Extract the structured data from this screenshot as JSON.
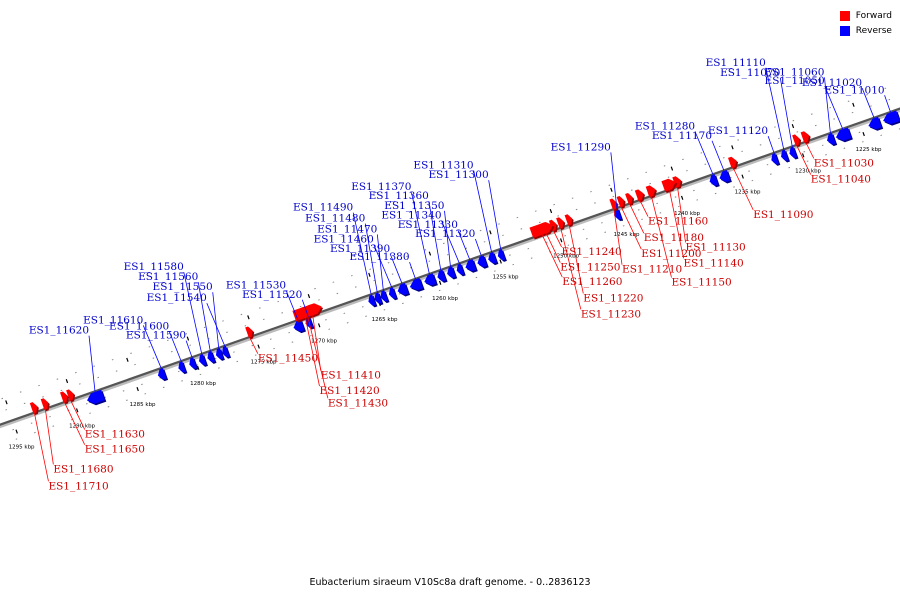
{
  "legend": {
    "forward_label": "Forward",
    "reverse_label": "Reverse",
    "forward_color": "#ff0000",
    "reverse_color": "#0000ff"
  },
  "caption": "Eubacterium siraeum V10Sc8a draft genome. - 0..2836123",
  "ticks": [
    {
      "label": "1225 kbp",
      "kbp": 1225
    },
    {
      "label": "1230 kbp",
      "kbp": 1230
    },
    {
      "label": "1235 kbp",
      "kbp": 1235
    },
    {
      "label": "1240 kbp",
      "kbp": 1240
    },
    {
      "label": "1245 kbp",
      "kbp": 1245
    },
    {
      "label": "1250 kbp",
      "kbp": 1250
    },
    {
      "label": "1255 kbp",
      "kbp": 1255
    },
    {
      "label": "1260 kbp",
      "kbp": 1260
    },
    {
      "label": "1265 kbp",
      "kbp": 1265
    },
    {
      "label": "1270 kbp",
      "kbp": 1270
    },
    {
      "label": "1275 kbp",
      "kbp": 1275
    },
    {
      "label": "1280 kbp",
      "kbp": 1280
    },
    {
      "label": "1285 kbp",
      "kbp": 1285
    },
    {
      "label": "1290 kbp",
      "kbp": 1290
    },
    {
      "label": "1295 kbp",
      "kbp": 1295
    }
  ],
  "reverse_genes": [
    {
      "name": "ES1_11010",
      "kbp": 1222.0,
      "len": 1.3
    },
    {
      "name": "ES1_11020",
      "kbp": 1223.5,
      "len": 1.0
    },
    {
      "name": "ES1_11050",
      "kbp": 1226.0,
      "len": 1.2
    },
    {
      "name": "ES1_11060",
      "kbp": 1227.3,
      "len": 0.6
    },
    {
      "name": "ES1_11070",
      "kbp": 1230.5,
      "len": 0.5
    },
    {
      "name": "ES1_11110",
      "kbp": 1231.2,
      "len": 0.5
    },
    {
      "name": "ES1_11120",
      "kbp": 1232.0,
      "len": 0.5
    },
    {
      "name": "ES1_11170",
      "kbp": 1236.0,
      "len": 0.8
    },
    {
      "name": "ES1_11280",
      "kbp": 1237.0,
      "len": 0.6
    },
    {
      "name": "ES1_11290",
      "kbp": 1245.0,
      "len": 0.2
    },
    {
      "name": "ES1_11300",
      "kbp": 1254.6,
      "len": 0.5
    },
    {
      "name": "ES1_11310",
      "kbp": 1255.3,
      "len": 0.6
    },
    {
      "name": "ES1_11320",
      "kbp": 1256.1,
      "len": 0.7
    },
    {
      "name": "ES1_11330",
      "kbp": 1257.0,
      "len": 0.8
    },
    {
      "name": "ES1_11340",
      "kbp": 1258.0,
      "len": 0.5
    },
    {
      "name": "ES1_11350",
      "kbp": 1258.7,
      "len": 0.6
    },
    {
      "name": "ES1_11360",
      "kbp": 1259.5,
      "len": 0.6
    },
    {
      "name": "ES1_11370",
      "kbp": 1260.3,
      "len": 0.9
    },
    {
      "name": "ES1_11380",
      "kbp": 1261.4,
      "len": 1.0
    },
    {
      "name": "ES1_11390",
      "kbp": 1262.6,
      "len": 0.8
    },
    {
      "name": "ES1_11460",
      "kbp": 1263.6,
      "len": 0.5
    },
    {
      "name": "ES1_11470",
      "kbp": 1264.3,
      "len": 0.3
    },
    {
      "name": "ES1_11480",
      "kbp": 1264.8,
      "len": 0.3
    },
    {
      "name": "ES1_11490",
      "kbp": 1265.3,
      "len": 0.3
    },
    {
      "name": "ES1_11520",
      "kbp": 1270.5,
      "len": 0.2
    },
    {
      "name": "ES1_11530",
      "kbp": 1271.2,
      "len": 0.8
    },
    {
      "name": "ES1_11540",
      "kbp": 1277.4,
      "len": 0.3
    },
    {
      "name": "ES1_11550",
      "kbp": 1277.9,
      "len": 0.5
    },
    {
      "name": "ES1_11560",
      "kbp": 1278.6,
      "len": 0.5
    },
    {
      "name": "ES1_11580",
      "kbp": 1279.3,
      "len": 0.5
    },
    {
      "name": "ES1_11590",
      "kbp": 1280.1,
      "len": 0.5
    },
    {
      "name": "ES1_11600",
      "kbp": 1281.0,
      "len": 0.4
    },
    {
      "name": "ES1_11610",
      "kbp": 1282.6,
      "len": 0.6
    },
    {
      "name": "ES1_11620",
      "kbp": 1287.7,
      "len": 1.4
    }
  ],
  "forward_genes": [
    {
      "name": "ES1_11030",
      "kbp": 1229.6,
      "len": 0.6
    },
    {
      "name": "ES1_11040",
      "kbp": 1230.3,
      "len": 0.3
    },
    {
      "name": "ES1_11090",
      "kbp": 1235.6,
      "len": 0.6
    },
    {
      "name": "ES1_11130",
      "kbp": 1240.2,
      "len": 0.6
    },
    {
      "name": "ES1_11140",
      "kbp": 1241.1,
      "len": 1.1
    },
    {
      "name": "ES1_11150",
      "kbp": 1242.4,
      "len": 0.7
    },
    {
      "name": "ES1_11160",
      "kbp": 1243.3,
      "len": 0.6
    },
    {
      "name": "ES1_11180",
      "kbp": 1244.1,
      "len": 0.5
    },
    {
      "name": "ES1_11200",
      "kbp": 1244.8,
      "len": 0.4
    },
    {
      "name": "ES1_11210",
      "kbp": 1245.4,
      "len": 0.4
    },
    {
      "name": "ES1_11220",
      "kbp": 1249.1,
      "len": 0.5
    },
    {
      "name": "ES1_11230",
      "kbp": 1249.8,
      "len": 0.5
    },
    {
      "name": "ES1_11240",
      "kbp": 1250.4,
      "len": 0.3
    },
    {
      "name": "ES1_11250",
      "kbp": 1251.0,
      "len": 0.4
    },
    {
      "name": "ES1_11260",
      "kbp": 1252.0,
      "len": 1.9
    },
    {
      "name": "ES1_11410",
      "kbp": 1270.3,
      "len": 0.4
    },
    {
      "name": "ES1_11420",
      "kbp": 1270.9,
      "len": 0.4
    },
    {
      "name": "ES1_11430",
      "kbp": 1271.6,
      "len": 2.4
    },
    {
      "name": "ES1_11450",
      "kbp": 1275.5,
      "len": 0.4
    },
    {
      "name": "ES1_11630",
      "kbp": 1290.3,
      "len": 0.3
    },
    {
      "name": "ES1_11650",
      "kbp": 1290.8,
      "len": 0.4
    },
    {
      "name": "ES1_11680",
      "kbp": 1292.4,
      "len": 0.5
    },
    {
      "name": "ES1_11710",
      "kbp": 1293.3,
      "len": 0.5
    }
  ]
}
